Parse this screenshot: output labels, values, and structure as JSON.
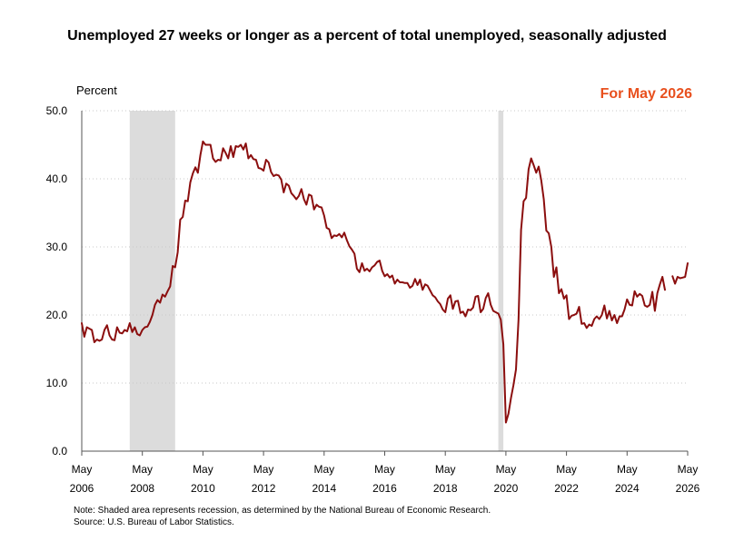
{
  "title": "Unemployed 27 weeks or longer as a percent of total unemployed, seasonally adjusted",
  "ylabel": "Percent",
  "badge": {
    "text": "For May 2026",
    "color": "#e8501e"
  },
  "notes": {
    "note": "Note: Shaded area represents recession, as determined by the National Bureau of Economic Research.",
    "source": "Source: U.S. Bureau of Labor Statistics."
  },
  "colors": {
    "line": "#8b0e0e",
    "recession": "#dcdcdc",
    "grid": "#c8c8c8",
    "axis": "#555555"
  },
  "chart_data": {
    "type": "line",
    "title": "Unemployed 27 weeks or longer as a percent of total unemployed, seasonally adjusted",
    "ylabel": "Percent",
    "ylim": [
      0,
      50
    ],
    "yticks": [
      "0.0",
      "10.0",
      "20.0",
      "30.0",
      "40.0",
      "50.0"
    ],
    "grid": true,
    "xlim": [
      "2006-05",
      "2026-05"
    ],
    "xticks": [
      {
        "date": "2006-05",
        "month": "May",
        "year": "2006"
      },
      {
        "date": "2008-05",
        "month": "May",
        "year": "2008"
      },
      {
        "date": "2010-05",
        "month": "May",
        "year": "2010"
      },
      {
        "date": "2012-05",
        "month": "May",
        "year": "2012"
      },
      {
        "date": "2014-05",
        "month": "May",
        "year": "2014"
      },
      {
        "date": "2016-05",
        "month": "May",
        "year": "2016"
      },
      {
        "date": "2018-05",
        "month": "May",
        "year": "2018"
      },
      {
        "date": "2020-05",
        "month": "May",
        "year": "2020"
      },
      {
        "date": "2022-05",
        "month": "May",
        "year": "2022"
      },
      {
        "date": "2024-05",
        "month": "May",
        "year": "2024"
      },
      {
        "date": "2026-05",
        "month": "May",
        "year": "2026"
      }
    ],
    "recessions": [
      {
        "start": "2007-12",
        "end": "2009-06"
      },
      {
        "start": "2020-02",
        "end": "2020-04"
      }
    ],
    "series": [
      {
        "points": [
          [
            "2006-05",
            18.8
          ],
          [
            "2006-06",
            16.8
          ],
          [
            "2006-07",
            18.2
          ],
          [
            "2006-08",
            18.0
          ],
          [
            "2006-09",
            17.8
          ],
          [
            "2006-10",
            16.0
          ],
          [
            "2006-11",
            16.4
          ],
          [
            "2006-12",
            16.2
          ],
          [
            "2007-01",
            16.4
          ],
          [
            "2007-02",
            17.8
          ],
          [
            "2007-03",
            18.5
          ],
          [
            "2007-04",
            17.0
          ],
          [
            "2007-05",
            16.4
          ],
          [
            "2007-06",
            16.3
          ],
          [
            "2007-07",
            18.2
          ],
          [
            "2007-08",
            17.4
          ],
          [
            "2007-09",
            17.3
          ],
          [
            "2007-10",
            17.8
          ],
          [
            "2007-11",
            17.6
          ],
          [
            "2007-12",
            18.8
          ],
          [
            "2008-01",
            17.5
          ],
          [
            "2008-02",
            18.2
          ],
          [
            "2008-03",
            17.2
          ],
          [
            "2008-04",
            17.0
          ],
          [
            "2008-05",
            17.8
          ],
          [
            "2008-06",
            18.2
          ],
          [
            "2008-07",
            18.3
          ],
          [
            "2008-08",
            19.0
          ],
          [
            "2008-09",
            20.0
          ],
          [
            "2008-10",
            21.5
          ],
          [
            "2008-11",
            22.2
          ],
          [
            "2008-12",
            21.8
          ],
          [
            "2009-01",
            23.0
          ],
          [
            "2009-02",
            22.7
          ],
          [
            "2009-03",
            23.5
          ],
          [
            "2009-04",
            24.2
          ],
          [
            "2009-05",
            27.2
          ],
          [
            "2009-06",
            27.0
          ],
          [
            "2009-07",
            29.2
          ],
          [
            "2009-08",
            34.0
          ],
          [
            "2009-09",
            34.4
          ],
          [
            "2009-10",
            36.8
          ],
          [
            "2009-11",
            36.7
          ],
          [
            "2009-12",
            39.5
          ],
          [
            "2010-01",
            40.8
          ],
          [
            "2010-02",
            41.7
          ],
          [
            "2010-03",
            40.9
          ],
          [
            "2010-04",
            43.5
          ],
          [
            "2010-05",
            45.5
          ],
          [
            "2010-06",
            45.0
          ],
          [
            "2010-07",
            45.0
          ],
          [
            "2010-08",
            45.0
          ],
          [
            "2010-09",
            43.0
          ],
          [
            "2010-10",
            42.5
          ],
          [
            "2010-11",
            42.8
          ],
          [
            "2010-12",
            42.7
          ],
          [
            "2011-01",
            44.5
          ],
          [
            "2011-02",
            43.8
          ],
          [
            "2011-03",
            43.0
          ],
          [
            "2011-04",
            44.8
          ],
          [
            "2011-05",
            43.2
          ],
          [
            "2011-06",
            44.8
          ],
          [
            "2011-07",
            44.7
          ],
          [
            "2011-08",
            45.0
          ],
          [
            "2011-09",
            44.3
          ],
          [
            "2011-10",
            45.2
          ],
          [
            "2011-11",
            43.0
          ],
          [
            "2011-12",
            43.5
          ],
          [
            "2012-01",
            42.9
          ],
          [
            "2012-02",
            42.8
          ],
          [
            "2012-03",
            41.6
          ],
          [
            "2012-04",
            41.5
          ],
          [
            "2012-05",
            41.2
          ],
          [
            "2012-06",
            42.8
          ],
          [
            "2012-07",
            42.4
          ],
          [
            "2012-08",
            41.0
          ],
          [
            "2012-09",
            40.4
          ],
          [
            "2012-10",
            40.6
          ],
          [
            "2012-11",
            40.5
          ],
          [
            "2012-12",
            39.9
          ],
          [
            "2013-01",
            38.0
          ],
          [
            "2013-02",
            39.3
          ],
          [
            "2013-03",
            39.0
          ],
          [
            "2013-04",
            37.9
          ],
          [
            "2013-05",
            37.5
          ],
          [
            "2013-06",
            37.0
          ],
          [
            "2013-07",
            37.5
          ],
          [
            "2013-08",
            38.5
          ],
          [
            "2013-09",
            37.0
          ],
          [
            "2013-10",
            36.2
          ],
          [
            "2013-11",
            37.7
          ],
          [
            "2013-12",
            37.5
          ],
          [
            "2014-01",
            35.5
          ],
          [
            "2014-02",
            36.2
          ],
          [
            "2014-03",
            35.9
          ],
          [
            "2014-04",
            35.8
          ],
          [
            "2014-05",
            34.6
          ],
          [
            "2014-06",
            32.8
          ],
          [
            "2014-07",
            32.6
          ],
          [
            "2014-08",
            31.3
          ],
          [
            "2014-09",
            31.7
          ],
          [
            "2014-10",
            31.6
          ],
          [
            "2014-11",
            31.9
          ],
          [
            "2014-12",
            31.4
          ],
          [
            "2015-01",
            32.1
          ],
          [
            "2015-02",
            31.0
          ],
          [
            "2015-03",
            30.1
          ],
          [
            "2015-04",
            29.6
          ],
          [
            "2015-05",
            29.0
          ],
          [
            "2015-06",
            26.8
          ],
          [
            "2015-07",
            26.3
          ],
          [
            "2015-08",
            27.6
          ],
          [
            "2015-09",
            26.5
          ],
          [
            "2015-10",
            26.8
          ],
          [
            "2015-11",
            26.4
          ],
          [
            "2015-12",
            27.0
          ],
          [
            "2016-01",
            27.3
          ],
          [
            "2016-02",
            27.8
          ],
          [
            "2016-03",
            28.0
          ],
          [
            "2016-04",
            26.5
          ],
          [
            "2016-05",
            25.7
          ],
          [
            "2016-06",
            26.0
          ],
          [
            "2016-07",
            25.5
          ],
          [
            "2016-08",
            25.8
          ],
          [
            "2016-09",
            24.6
          ],
          [
            "2016-10",
            25.2
          ],
          [
            "2016-11",
            24.8
          ],
          [
            "2016-12",
            24.8
          ],
          [
            "2017-01",
            24.7
          ],
          [
            "2017-02",
            24.7
          ],
          [
            "2017-03",
            24.0
          ],
          [
            "2017-04",
            24.3
          ],
          [
            "2017-05",
            25.3
          ],
          [
            "2017-06",
            24.4
          ],
          [
            "2017-07",
            25.2
          ],
          [
            "2017-08",
            23.7
          ],
          [
            "2017-09",
            24.5
          ],
          [
            "2017-10",
            24.3
          ],
          [
            "2017-11",
            23.6
          ],
          [
            "2017-12",
            22.9
          ],
          [
            "2018-01",
            22.6
          ],
          [
            "2018-02",
            22.0
          ],
          [
            "2018-03",
            21.6
          ],
          [
            "2018-04",
            20.8
          ],
          [
            "2018-05",
            20.4
          ],
          [
            "2018-06",
            22.4
          ],
          [
            "2018-07",
            22.9
          ],
          [
            "2018-08",
            20.9
          ],
          [
            "2018-09",
            22.0
          ],
          [
            "2018-10",
            22.1
          ],
          [
            "2018-11",
            20.3
          ],
          [
            "2018-12",
            20.5
          ],
          [
            "2019-01",
            19.8
          ],
          [
            "2019-02",
            20.8
          ],
          [
            "2019-03",
            20.7
          ],
          [
            "2019-04",
            21.1
          ],
          [
            "2019-05",
            22.7
          ],
          [
            "2019-06",
            22.8
          ],
          [
            "2019-07",
            20.4
          ],
          [
            "2019-08",
            20.9
          ],
          [
            "2019-09",
            22.5
          ],
          [
            "2019-10",
            23.2
          ],
          [
            "2019-11",
            21.5
          ],
          [
            "2019-12",
            20.6
          ],
          [
            "2020-01",
            20.4
          ],
          [
            "2020-02",
            20.2
          ],
          [
            "2020-03",
            19.3
          ],
          [
            "2020-04",
            15.7
          ],
          [
            "2020-05",
            4.2
          ],
          [
            "2020-06",
            5.5
          ],
          [
            "2020-07",
            7.8
          ],
          [
            "2020-08",
            9.7
          ],
          [
            "2020-09",
            12.0
          ],
          [
            "2020-10",
            19.3
          ],
          [
            "2020-11",
            32.5
          ],
          [
            "2020-12",
            36.7
          ],
          [
            "2021-01",
            37.2
          ],
          [
            "2021-02",
            41.4
          ],
          [
            "2021-03",
            43.0
          ],
          [
            "2021-04",
            42.0
          ],
          [
            "2021-05",
            40.9
          ],
          [
            "2021-06",
            41.8
          ],
          [
            "2021-07",
            39.8
          ],
          [
            "2021-08",
            37.0
          ],
          [
            "2021-09",
            32.4
          ],
          [
            "2021-10",
            32.0
          ],
          [
            "2021-11",
            30.0
          ],
          [
            "2021-12",
            25.6
          ],
          [
            "2022-01",
            27.0
          ],
          [
            "2022-02",
            23.2
          ],
          [
            "2022-03",
            23.8
          ],
          [
            "2022-04",
            22.4
          ],
          [
            "2022-05",
            22.9
          ],
          [
            "2022-06",
            19.4
          ],
          [
            "2022-07",
            19.9
          ],
          [
            "2022-08",
            20.0
          ],
          [
            "2022-09",
            20.2
          ],
          [
            "2022-10",
            21.2
          ],
          [
            "2022-11",
            18.7
          ],
          [
            "2022-12",
            18.8
          ],
          [
            "2023-01",
            18.1
          ],
          [
            "2023-02",
            18.6
          ],
          [
            "2023-03",
            18.4
          ],
          [
            "2023-04",
            19.4
          ],
          [
            "2023-05",
            19.8
          ],
          [
            "2023-06",
            19.4
          ],
          [
            "2023-07",
            20.0
          ],
          [
            "2023-08",
            21.4
          ],
          [
            "2023-09",
            19.5
          ],
          [
            "2023-10",
            20.6
          ],
          [
            "2023-11",
            19.2
          ],
          [
            "2023-12",
            20.0
          ],
          [
            "2024-01",
            18.8
          ],
          [
            "2024-02",
            19.8
          ],
          [
            "2024-03",
            19.8
          ],
          [
            "2024-04",
            20.8
          ],
          [
            "2024-05",
            22.3
          ],
          [
            "2024-06",
            21.5
          ],
          [
            "2024-07",
            21.4
          ],
          [
            "2024-08",
            23.5
          ],
          [
            "2024-09",
            22.7
          ],
          [
            "2024-10",
            23.1
          ],
          [
            "2024-11",
            22.8
          ],
          [
            "2024-12",
            21.4
          ],
          [
            "2025-01",
            21.2
          ],
          [
            "2025-02",
            21.5
          ],
          [
            "2025-03",
            23.4
          ],
          [
            "2025-04",
            20.6
          ],
          [
            "2025-05",
            23.2
          ],
          [
            "2025-06",
            24.5
          ],
          [
            "2025-07",
            25.6
          ],
          [
            "2025-08",
            23.7
          ],
          [
            "2025-09",
            null
          ],
          [
            "2025-10",
            null
          ],
          [
            "2025-11",
            25.7
          ],
          [
            "2025-12",
            24.6
          ],
          [
            "2026-01",
            25.6
          ],
          [
            "2026-02",
            25.4
          ],
          [
            "2026-03",
            25.5
          ],
          [
            "2026-04",
            25.6
          ],
          [
            "2026-05",
            27.6
          ]
        ]
      }
    ]
  }
}
